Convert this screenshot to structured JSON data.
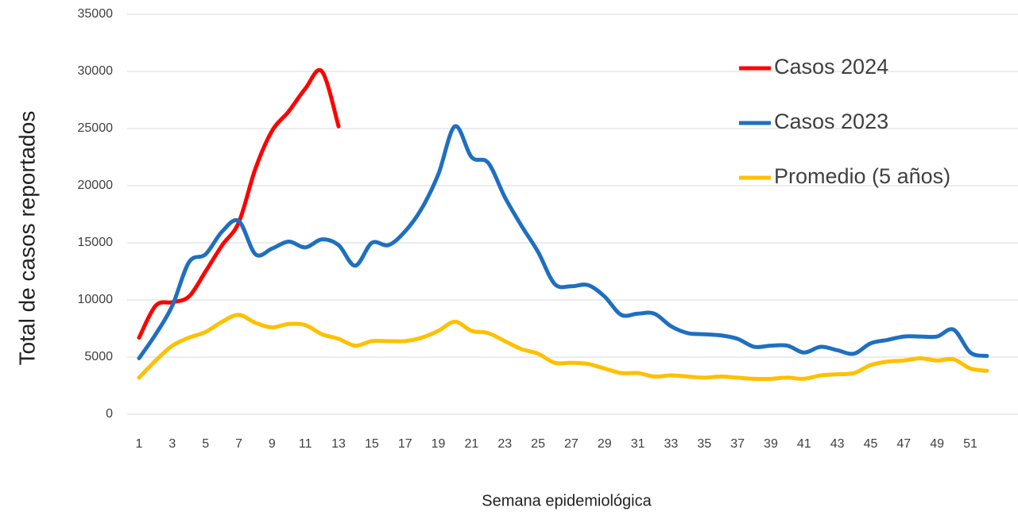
{
  "chart_data": {
    "type": "line",
    "y_label": "Total de casos reportados",
    "x_label": "Semana epidemiológica",
    "categories": [
      "1",
      null,
      "3",
      null,
      "5",
      null,
      "7",
      null,
      "9",
      null,
      "11",
      null,
      "13",
      null,
      "15",
      null,
      "17",
      null,
      "19",
      null,
      "21",
      null,
      "23",
      null,
      "25",
      null,
      "27",
      null,
      "29",
      null,
      "31",
      null,
      "33",
      null,
      "35",
      null,
      "37",
      null,
      "39",
      null,
      "41",
      null,
      "43",
      null,
      "45",
      null,
      "47",
      null,
      "49",
      null,
      "51",
      null
    ],
    "series": [
      {
        "name": "Casos 2024",
        "color": "#ff0000",
        "values": [
          6700,
          9500,
          9800,
          10300,
          12500,
          14800,
          16800,
          21500,
          24800,
          26500,
          28500,
          30000,
          25200,
          null,
          null,
          null,
          null,
          null,
          null,
          null,
          null,
          null,
          null,
          null,
          null,
          null,
          null,
          null,
          null,
          null,
          null,
          null,
          null,
          null,
          null,
          null,
          null,
          null,
          null,
          null,
          null,
          null,
          null,
          null,
          null,
          null,
          null,
          null,
          null,
          null,
          null,
          null
        ]
      },
      {
        "name": "Casos 2023",
        "color": "#1f6fc0",
        "values": [
          4900,
          7000,
          9500,
          13300,
          14000,
          16000,
          16900,
          14000,
          14500,
          15100,
          14600,
          15300,
          14800,
          13000,
          15000,
          14800,
          16000,
          18000,
          21000,
          25200,
          22500,
          22000,
          19000,
          16500,
          14200,
          11400,
          11200,
          11300,
          10300,
          8700,
          8800,
          8800,
          7700,
          7100,
          7000,
          6900,
          6600,
          5900,
          6000,
          6000,
          5400,
          5900,
          5600,
          5300,
          6200,
          6500,
          6800,
          6800,
          6800,
          7400,
          5400,
          5100
        ]
      },
      {
        "name": "Promedio (5 años)",
        "color": "#ffc000",
        "values": [
          3200,
          4700,
          6000,
          6700,
          7200,
          8100,
          8700,
          8000,
          7600,
          7900,
          7800,
          7000,
          6600,
          6000,
          6400,
          6400,
          6400,
          6700,
          7300,
          8100,
          7300,
          7100,
          6400,
          5700,
          5300,
          4500,
          4500,
          4400,
          4000,
          3600,
          3600,
          3300,
          3400,
          3300,
          3200,
          3300,
          3200,
          3100,
          3100,
          3200,
          3100,
          3400,
          3500,
          3600,
          4300,
          4600,
          4700,
          4900,
          4700,
          4800,
          4000,
          3800
        ]
      }
    ],
    "ylim": [
      0,
      35000
    ],
    "yticks": [
      0,
      5000,
      10000,
      15000,
      20000,
      25000,
      30000,
      35000
    ],
    "grid": true
  }
}
